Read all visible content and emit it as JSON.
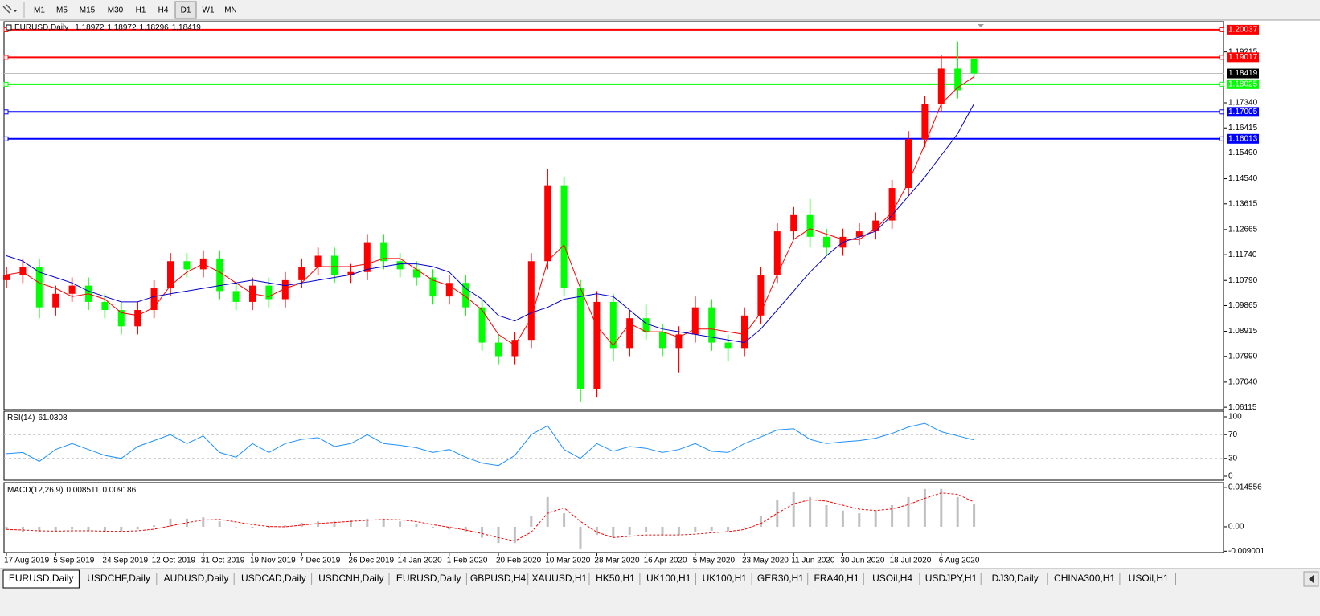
{
  "toolbar": {
    "timeframes": [
      "M1",
      "M5",
      "M15",
      "M30",
      "H1",
      "H4",
      "D1",
      "W1",
      "MN"
    ]
  },
  "tabs": [
    "EURUSD,Daily",
    "USDCHF,Daily",
    "AUDUSD,Daily",
    "USDCAD,Daily",
    "USDCNH,Daily",
    "EURUSD,Daily",
    "GBPUSD,H4",
    "XAUUSD,H1",
    "HK50,H1",
    "UK100,H1",
    "UK100,H1",
    "GER30,H1",
    "FRA40,H1",
    "USOil,H4",
    "USDJPY,H1",
    "DJ30,Daily",
    "CHINA300,H1",
    "USOil,H1"
  ],
  "chart_data": [
    {
      "type": "candlestick",
      "title": "EURUSD,Daily",
      "categories": [
        "17 Aug 2019",
        null,
        null,
        "5 Sep 2019",
        null,
        null,
        "24 Sep 2019",
        null,
        null,
        "12 Oct 2019",
        null,
        null,
        "31 Oct 2019",
        null,
        null,
        "19 Nov 2019",
        null,
        null,
        "7 Dec 2019",
        null,
        null,
        "26 Dec 2019",
        null,
        null,
        "14 Jan 2020",
        null,
        null,
        "1 Feb 2020",
        null,
        null,
        "20 Feb 2020",
        null,
        null,
        "10 Mar 2020",
        null,
        null,
        "28 Mar 2020",
        null,
        null,
        "16 Apr 2020",
        null,
        null,
        "5 May 2020",
        null,
        null,
        "23 May 2020",
        null,
        null,
        "11 Jun 2020",
        null,
        null,
        "30 Jun 2020",
        null,
        null,
        "18 Jul 2020",
        null,
        null,
        "6 Aug 2020",
        null,
        null
      ],
      "open": [
        1.108,
        1.11,
        1.113,
        1.098,
        1.103,
        1.106,
        1.1,
        1.097,
        1.091,
        1.097,
        1.105,
        1.115,
        1.112,
        1.116,
        1.104,
        1.1,
        1.106,
        1.101,
        1.108,
        1.113,
        1.117,
        1.11,
        1.111,
        1.122,
        1.115,
        1.112,
        1.109,
        1.102,
        1.107,
        1.098,
        1.085,
        1.08,
        1.086,
        1.115,
        1.143,
        1.105,
        1.068,
        1.1,
        1.083,
        1.094,
        1.089,
        1.083,
        1.088,
        1.098,
        1.085,
        1.083,
        1.095,
        1.11,
        1.126,
        1.132,
        1.124,
        1.12,
        1.124,
        1.126,
        1.13,
        1.142,
        1.16,
        1.173,
        1.186,
        1.18972
      ],
      "high": [
        1.113,
        1.116,
        1.116,
        1.106,
        1.109,
        1.109,
        1.103,
        1.1,
        1.1,
        1.108,
        1.118,
        1.118,
        1.119,
        1.119,
        1.107,
        1.109,
        1.109,
        1.111,
        1.116,
        1.12,
        1.12,
        1.114,
        1.125,
        1.125,
        1.118,
        1.115,
        1.112,
        1.11,
        1.11,
        1.101,
        1.088,
        1.089,
        1.118,
        1.149,
        1.146,
        1.108,
        1.104,
        1.103,
        1.097,
        1.099,
        1.092,
        1.091,
        1.102,
        1.101,
        1.088,
        1.098,
        1.113,
        1.129,
        1.135,
        1.138,
        1.127,
        1.127,
        1.129,
        1.133,
        1.145,
        1.163,
        1.176,
        1.191,
        1.196,
        1.18972
      ],
      "low": [
        1.105,
        1.107,
        1.094,
        1.095,
        1.1,
        1.097,
        1.094,
        1.088,
        1.088,
        1.094,
        1.102,
        1.109,
        1.109,
        1.101,
        1.097,
        1.097,
        1.098,
        1.098,
        1.105,
        1.11,
        1.107,
        1.107,
        1.108,
        1.112,
        1.109,
        1.106,
        1.099,
        1.099,
        1.095,
        1.082,
        1.077,
        1.077,
        1.083,
        1.112,
        1.102,
        1.063,
        1.065,
        1.078,
        1.08,
        1.086,
        1.08,
        1.074,
        1.085,
        1.082,
        1.078,
        1.08,
        1.092,
        1.107,
        1.123,
        1.12,
        1.117,
        1.117,
        1.121,
        1.123,
        1.127,
        1.139,
        1.157,
        1.17,
        1.175,
        1.18296
      ],
      "close": [
        1.11,
        1.113,
        1.098,
        1.103,
        1.106,
        1.1,
        1.097,
        1.091,
        1.097,
        1.105,
        1.115,
        1.112,
        1.116,
        1.104,
        1.1,
        1.106,
        1.101,
        1.108,
        1.113,
        1.117,
        1.11,
        1.111,
        1.122,
        1.115,
        1.112,
        1.109,
        1.102,
        1.107,
        1.098,
        1.085,
        1.08,
        1.086,
        1.115,
        1.143,
        1.105,
        1.068,
        1.1,
        1.083,
        1.094,
        1.089,
        1.083,
        1.088,
        1.098,
        1.085,
        1.083,
        1.095,
        1.11,
        1.126,
        1.132,
        1.124,
        1.12,
        1.124,
        1.126,
        1.13,
        1.142,
        1.16,
        1.173,
        1.186,
        1.178,
        1.18419
      ],
      "up_color": "#ff0000",
      "down_color": "#00ff00",
      "ma_lines": [
        {
          "color": "#ff0000",
          "values": [
            1.11,
            1.111,
            1.107,
            1.105,
            1.102,
            1.103,
            1.101,
            1.096,
            1.095,
            1.098,
            1.106,
            1.111,
            1.114,
            1.111,
            1.107,
            1.103,
            1.102,
            1.105,
            1.107,
            1.113,
            1.113,
            1.113,
            1.114,
            1.116,
            1.116,
            1.112,
            1.108,
            1.106,
            1.102,
            1.097,
            1.088,
            1.084,
            1.094,
            1.115,
            1.121,
            1.105,
            1.091,
            1.084,
            1.092,
            1.089,
            1.089,
            1.087,
            1.09,
            1.09,
            1.089,
            1.088,
            1.096,
            1.11,
            1.123,
            1.127,
            1.125,
            1.123,
            1.123,
            1.127,
            1.133,
            1.144,
            1.158,
            1.173,
            1.179,
            1.183
          ]
        },
        {
          "color": "#0000cd",
          "values": [
            1.117,
            1.115,
            1.111,
            1.109,
            1.107,
            1.104,
            1.102,
            1.1,
            1.1,
            1.102,
            1.103,
            1.104,
            1.105,
            1.106,
            1.107,
            1.108,
            1.107,
            1.106,
            1.107,
            1.108,
            1.109,
            1.11,
            1.112,
            1.113,
            1.114,
            1.114,
            1.113,
            1.111,
            1.105,
            1.101,
            1.095,
            1.093,
            1.096,
            1.098,
            1.101,
            1.102,
            1.103,
            1.102,
            1.097,
            1.092,
            1.09,
            1.089,
            1.088,
            1.087,
            1.086,
            1.085,
            1.09,
            1.097,
            1.104,
            1.111,
            1.117,
            1.122,
            1.124,
            1.126,
            1.132,
            1.139,
            1.146,
            1.154,
            1.162,
            1.173
          ]
        }
      ],
      "levels": [
        {
          "value": 1.20037,
          "color": "#ff0000"
        },
        {
          "value": 1.19017,
          "color": "#ff0000"
        },
        {
          "value": 1.18025,
          "color": "#00ff00"
        },
        {
          "value": 1.17005,
          "color": "#0000ff"
        },
        {
          "value": 1.16013,
          "color": "#0000ff"
        }
      ],
      "ylim": [
        1.0603,
        1.2033
      ],
      "yticks": [
        1.19215,
        {
          "value": 1.1734,
          "label": "1.17340"
        },
        1.16415,
        {
          "value": 1.1549,
          "label": "1.15490"
        },
        {
          "value": 1.1454,
          "label": "1.14540"
        },
        1.13615,
        1.12665,
        {
          "value": 1.1174,
          "label": "1.11740"
        },
        {
          "value": 1.1079,
          "label": "1.10790"
        },
        1.09865,
        1.08915,
        {
          "value": 1.0799,
          "label": "1.07990"
        },
        {
          "value": 1.0704,
          "label": "1.07040"
        },
        1.06115
      ]
    },
    {
      "type": "line",
      "title": "RSI(14)",
      "color": "#1e90ff",
      "values": [
        38,
        40,
        25,
        45,
        55,
        45,
        35,
        30,
        50,
        60,
        70,
        55,
        68,
        40,
        32,
        55,
        40,
        55,
        62,
        65,
        50,
        55,
        70,
        55,
        52,
        48,
        40,
        45,
        32,
        22,
        18,
        35,
        70,
        85,
        45,
        30,
        55,
        42,
        50,
        47,
        40,
        45,
        55,
        42,
        40,
        55,
        66,
        78,
        80,
        62,
        55,
        58,
        60,
        64,
        72,
        83,
        89,
        75,
        68,
        61.0308
      ],
      "levels": [
        70,
        30
      ],
      "ylim": [
        0,
        100
      ],
      "yticks": [
        100,
        70,
        30,
        0
      ]
    },
    {
      "type": "macd",
      "title": "MACD(12,26,9)",
      "histogram_color": "#c0c0c0",
      "signal_color": "#ff0000",
      "histogram": [
        -0.001,
        -0.002,
        -0.002,
        -0.0015,
        -0.001,
        -0.0015,
        -0.002,
        -0.002,
        -0.001,
        0.0005,
        0.003,
        0.003,
        0.0035,
        0.002,
        0,
        -0.0005,
        -0.0005,
        0.0005,
        0.0015,
        0.002,
        0.002,
        0.0025,
        0.003,
        0.003,
        0.002,
        0.001,
        -0.0005,
        -0.001,
        -0.002,
        -0.004,
        -0.006,
        -0.006,
        0.004,
        0.011,
        0.005,
        -0.008,
        -0.003,
        -0.004,
        -0.003,
        -0.002,
        -0.003,
        -0.003,
        -0.002,
        -0.0015,
        -0.0015,
        0,
        0.004,
        0.01,
        0.013,
        0.011,
        0.008,
        0.006,
        0.005,
        0.006,
        0.008,
        0.011,
        0.014,
        0.014,
        0.011,
        0.008511
      ],
      "signal": [
        -0.001,
        -0.0012,
        -0.0015,
        -0.0016,
        -0.0015,
        -0.0015,
        -0.0016,
        -0.0017,
        -0.0015,
        -0.0009,
        0.0003,
        0.0015,
        0.0025,
        0.0027,
        0.0018,
        0.0008,
        0.0001,
        0,
        0.0006,
        0.0012,
        0.0016,
        0.002,
        0.0024,
        0.0027,
        0.0026,
        0.0019,
        0.0008,
        -0.0002,
        -0.0012,
        -0.0025,
        -0.004,
        -0.0052,
        -0.002,
        0.005,
        0.007,
        0.002,
        -0.002,
        -0.004,
        -0.0035,
        -0.003,
        -0.003,
        -0.003,
        -0.0027,
        -0.0022,
        -0.0018,
        -0.001,
        0.0012,
        0.005,
        0.0085,
        0.01,
        0.0095,
        0.008,
        0.0065,
        0.006,
        0.0066,
        0.0082,
        0.0105,
        0.0125,
        0.012,
        0.009186
      ],
      "ylim": [
        -0.0095,
        0.0157
      ],
      "yticks": [
        0.014556,
        {
          "value": 0,
          "label": "0.00"
        },
        -0.009001
      ]
    }
  ]
}
